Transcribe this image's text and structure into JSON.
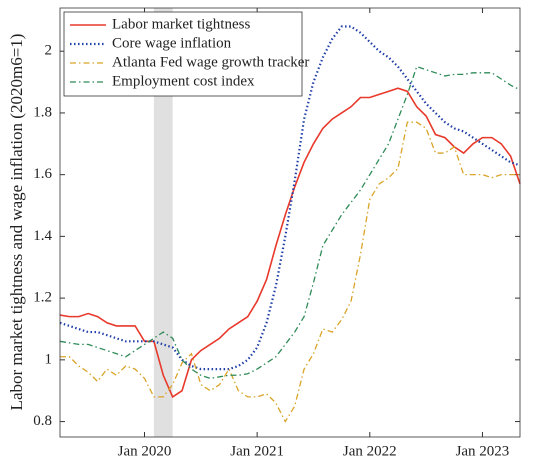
{
  "chart_data": {
    "type": "line",
    "y_label": "Labor market tightness and wage inflation (2020m6=1)",
    "x": [
      "2019-04",
      "2019-05",
      "2019-06",
      "2019-07",
      "2019-08",
      "2019-09",
      "2019-10",
      "2019-11",
      "2019-12",
      "2020-01",
      "2020-02",
      "2020-03",
      "2020-04",
      "2020-05",
      "2020-06",
      "2020-07",
      "2020-08",
      "2020-09",
      "2020-10",
      "2020-11",
      "2020-12",
      "2021-01",
      "2021-02",
      "2021-03",
      "2021-04",
      "2021-05",
      "2021-06",
      "2021-07",
      "2021-08",
      "2021-09",
      "2021-10",
      "2021-11",
      "2021-12",
      "2022-01",
      "2022-02",
      "2022-03",
      "2022-04",
      "2022-05",
      "2022-06",
      "2022-07",
      "2022-08",
      "2022-09",
      "2022-10",
      "2022-11",
      "2022-12",
      "2023-01",
      "2023-02",
      "2023-03",
      "2023-04",
      "2023-05"
    ],
    "xlim": [
      "2019-04",
      "2023-05"
    ],
    "xticks": [
      {
        "value": "2020-01",
        "label": "Jan 2020"
      },
      {
        "value": "2021-01",
        "label": "Jan 2021"
      },
      {
        "value": "2022-01",
        "label": "Jan 2022"
      },
      {
        "value": "2023-01",
        "label": "Jan 2023"
      }
    ],
    "ylim": [
      0.75,
      2.14
    ],
    "yticks": [
      0.8,
      1,
      1.2,
      1.4,
      1.6,
      1.8,
      2
    ],
    "shaded_span": [
      "2020-02",
      "2020-04"
    ],
    "legend": "upper left",
    "series": [
      {
        "name": "Labor market tightness",
        "color": "#e8392b",
        "style": "solid",
        "values": [
          1.145,
          1.14,
          1.14,
          1.15,
          1.14,
          1.12,
          1.11,
          1.11,
          1.11,
          1.06,
          1.06,
          0.95,
          0.88,
          0.9,
          1.0,
          1.03,
          1.05,
          1.07,
          1.1,
          1.12,
          1.14,
          1.19,
          1.26,
          1.37,
          1.47,
          1.56,
          1.64,
          1.7,
          1.75,
          1.78,
          1.8,
          1.82,
          1.85,
          1.85,
          1.86,
          1.87,
          1.88,
          1.87,
          1.82,
          1.79,
          1.73,
          1.72,
          1.69,
          1.67,
          1.7,
          1.72,
          1.72,
          1.7,
          1.66,
          1.57
        ]
      },
      {
        "name": "Core wage inflation",
        "color": "#1f3ea8",
        "style": "dotted",
        "values": [
          1.12,
          1.11,
          1.1,
          1.09,
          1.09,
          1.08,
          1.07,
          1.06,
          1.06,
          1.06,
          1.06,
          1.05,
          1.04,
          1.0,
          0.98,
          0.97,
          0.97,
          0.97,
          0.97,
          0.98,
          1.0,
          1.04,
          1.12,
          1.24,
          1.4,
          1.58,
          1.78,
          1.9,
          1.98,
          2.04,
          2.08,
          2.08,
          2.06,
          2.03,
          2.0,
          1.98,
          1.95,
          1.91,
          1.87,
          1.83,
          1.8,
          1.77,
          1.75,
          1.74,
          1.72,
          1.7,
          1.68,
          1.66,
          1.64,
          1.63
        ]
      },
      {
        "name": "Atlanta Fed wage growth tracker",
        "color": "#d9a428",
        "style": "dashdot",
        "values": [
          1.01,
          1.01,
          0.98,
          0.96,
          0.93,
          0.97,
          0.95,
          0.98,
          0.97,
          0.94,
          0.88,
          0.88,
          0.92,
          0.99,
          1.02,
          0.92,
          0.9,
          0.92,
          0.97,
          0.9,
          0.88,
          0.88,
          0.89,
          0.86,
          0.8,
          0.85,
          0.97,
          1.02,
          1.1,
          1.09,
          1.13,
          1.19,
          1.34,
          1.52,
          1.57,
          1.59,
          1.62,
          1.77,
          1.77,
          1.75,
          1.67,
          1.67,
          1.69,
          1.6,
          1.6,
          1.6,
          1.59,
          1.6,
          1.6,
          1.6
        ]
      },
      {
        "name": "Employment cost index",
        "color": "#2e8b57",
        "style": "dashdot",
        "values": [
          1.06,
          1.055,
          1.05,
          1.05,
          1.04,
          1.03,
          1.02,
          1.01,
          1.03,
          1.05,
          1.07,
          1.09,
          1.07,
          1.0,
          0.97,
          0.95,
          0.94,
          0.945,
          0.95,
          0.95,
          0.955,
          0.97,
          0.99,
          1.01,
          1.05,
          1.09,
          1.14,
          1.25,
          1.37,
          1.42,
          1.47,
          1.51,
          1.55,
          1.6,
          1.65,
          1.7,
          1.78,
          1.86,
          1.95,
          1.94,
          1.93,
          1.92,
          1.925,
          1.925,
          1.93,
          1.93,
          1.93,
          1.91,
          1.89,
          1.875
        ]
      }
    ]
  }
}
